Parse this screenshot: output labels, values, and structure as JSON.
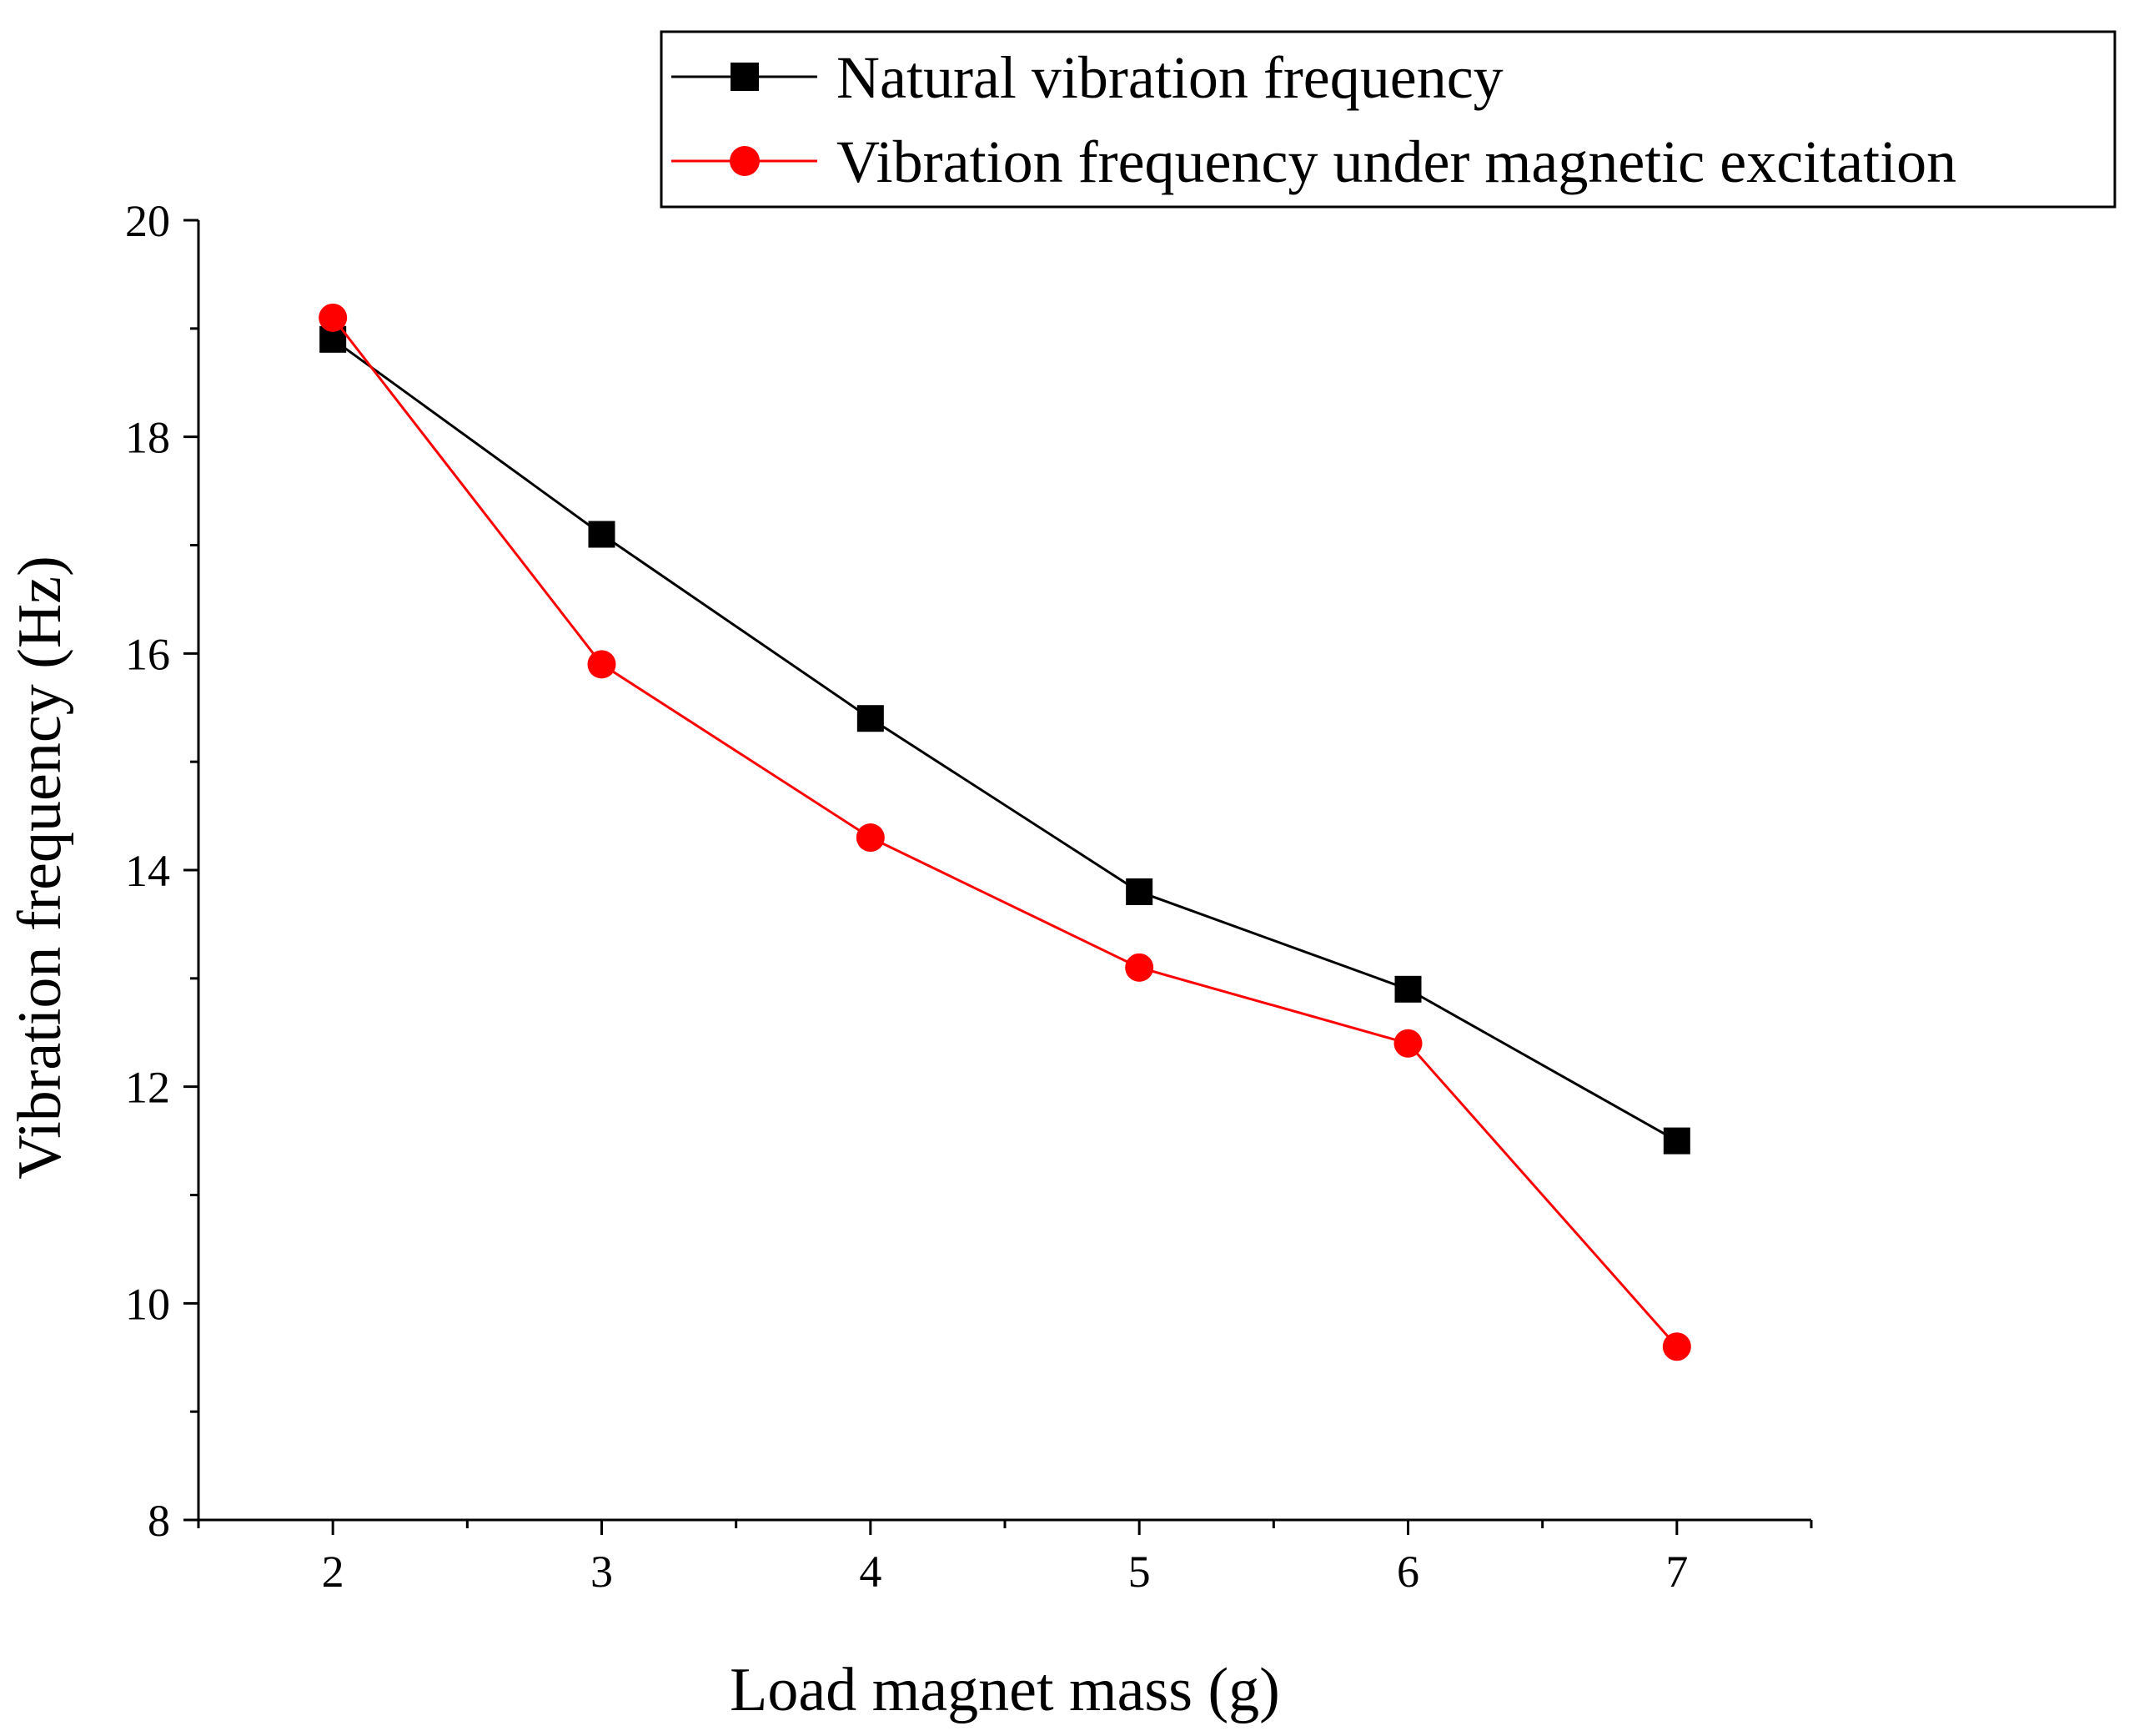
{
  "chart_data": {
    "type": "line",
    "title": "",
    "xlabel": "Load magnet mass (g)",
    "ylabel": "Vibration frequency (Hz)",
    "x": [
      2,
      3,
      4,
      5,
      6,
      7
    ],
    "xlim": [
      1.5,
      7.5
    ],
    "ylim": [
      8,
      20
    ],
    "xticks": [
      2,
      3,
      4,
      5,
      6,
      7
    ],
    "yticks": [
      8,
      10,
      12,
      14,
      16,
      18,
      20
    ],
    "grid": false,
    "legend_position": "top-right",
    "series": [
      {
        "name": "Natural vibration frequency",
        "color": "#000000",
        "marker": "square",
        "values": [
          18.9,
          17.1,
          15.4,
          13.8,
          12.9,
          11.5
        ]
      },
      {
        "name": "Vibration frequency under magnetic excitation",
        "color": "#ff0000",
        "marker": "circle",
        "values": [
          19.1,
          15.9,
          14.3,
          13.1,
          12.4,
          9.6
        ]
      }
    ]
  }
}
